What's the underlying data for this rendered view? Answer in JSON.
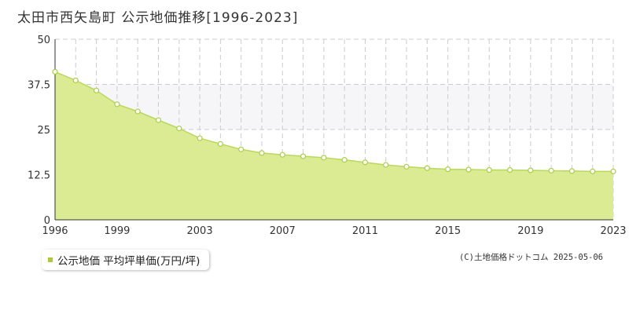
{
  "title": "太田市西矢島町 公示地価推移[1996-2023]",
  "legend": {
    "label": "公示地価 平均坪単価(万円/坪)"
  },
  "credit": "(C)土地価格ドットコム 2025-05-06",
  "colors": {
    "area_fill": "#dbeb94",
    "line": "#b8d95a",
    "marker_stroke": "#a9cf45",
    "band": "#f6f5f8",
    "grid": "#cccccc",
    "legend_swatch": "#aacc33"
  },
  "chart_data": {
    "type": "area",
    "title": "太田市西矢島町 公示地価推移[1996-2023]",
    "xlabel": "",
    "ylabel": "",
    "x": [
      1996,
      1997,
      1998,
      1999,
      2000,
      2001,
      2002,
      2003,
      2004,
      2005,
      2006,
      2007,
      2008,
      2009,
      2010,
      2011,
      2012,
      2013,
      2014,
      2015,
      2016,
      2017,
      2018,
      2019,
      2020,
      2021,
      2022,
      2023
    ],
    "series": [
      {
        "name": "公示地価 平均坪単価(万円/坪)",
        "values": [
          41.0,
          38.6,
          35.8,
          32.0,
          30.0,
          27.6,
          25.3,
          22.6,
          21.0,
          19.5,
          18.5,
          18.0,
          17.6,
          17.2,
          16.6,
          15.9,
          15.2,
          14.7,
          14.3,
          14.0,
          13.9,
          13.8,
          13.8,
          13.7,
          13.6,
          13.5,
          13.4,
          13.4
        ]
      }
    ],
    "ylim": [
      0,
      50
    ],
    "yticks": [
      "0",
      "12.5",
      "25",
      "37.5",
      "50"
    ],
    "ytick_values": [
      0,
      12.5,
      25,
      37.5,
      50
    ],
    "xtick_labels": [
      "1996",
      "1999",
      "2003",
      "2007",
      "2011",
      "2015",
      "2019",
      "2023"
    ],
    "xtick_values": [
      1996,
      1999,
      2003,
      2007,
      2011,
      2015,
      2019,
      2023
    ],
    "grid": true,
    "legend_position": "bottom-left"
  }
}
